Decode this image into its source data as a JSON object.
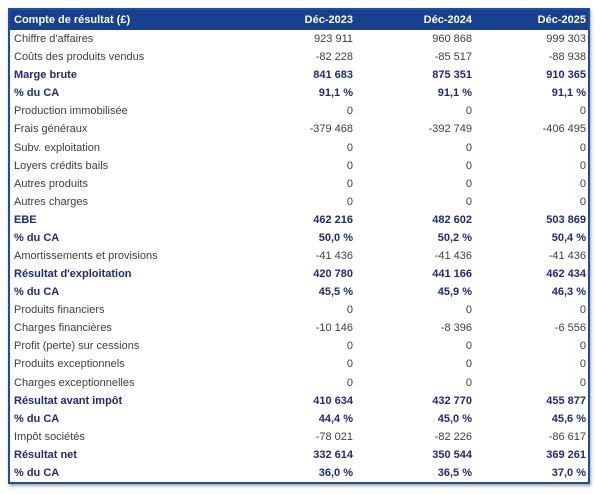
{
  "table": {
    "title": "Compte de résultat (£)",
    "columns": [
      "Déc-2023",
      "Déc-2024",
      "Déc-2025"
    ],
    "rows": [
      {
        "label": "Chiffre d'affaires",
        "values": [
          "923 911",
          "960 868",
          "999 303"
        ],
        "bold": false
      },
      {
        "label": "Coûts des produits vendus",
        "values": [
          "-82 228",
          "-85 517",
          "-88 938"
        ],
        "bold": false
      },
      {
        "label": "Marge brute",
        "values": [
          "841 683",
          "875 351",
          "910 365"
        ],
        "bold": true
      },
      {
        "label": "% du CA",
        "values": [
          "91,1 %",
          "91,1 %",
          "91,1 %"
        ],
        "bold": true
      },
      {
        "label": "Production immobilisée",
        "values": [
          "0",
          "0",
          "0"
        ],
        "bold": false
      },
      {
        "label": "Frais généraux",
        "values": [
          "-379 468",
          "-392 749",
          "-406 495"
        ],
        "bold": false
      },
      {
        "label": "Subv. exploitation",
        "values": [
          "0",
          "0",
          "0"
        ],
        "bold": false
      },
      {
        "label": "Loyers crédits bails",
        "values": [
          "0",
          "0",
          "0"
        ],
        "bold": false
      },
      {
        "label": "Autres produits",
        "values": [
          "0",
          "0",
          "0"
        ],
        "bold": false
      },
      {
        "label": "Autres charges",
        "values": [
          "0",
          "0",
          "0"
        ],
        "bold": false
      },
      {
        "label": "EBE",
        "values": [
          "462 216",
          "482 602",
          "503 869"
        ],
        "bold": true
      },
      {
        "label": "% du CA",
        "values": [
          "50,0 %",
          "50,2 %",
          "50,4 %"
        ],
        "bold": true
      },
      {
        "label": "Amortissements et provisions",
        "values": [
          "-41 436",
          "-41 436",
          "-41 436"
        ],
        "bold": false
      },
      {
        "label": "Résultat d'exploitation",
        "values": [
          "420 780",
          "441 166",
          "462 434"
        ],
        "bold": true
      },
      {
        "label": "% du CA",
        "values": [
          "45,5 %",
          "45,9 %",
          "46,3 %"
        ],
        "bold": true
      },
      {
        "label": "Produits financiers",
        "values": [
          "0",
          "0",
          "0"
        ],
        "bold": false
      },
      {
        "label": "Charges financières",
        "values": [
          "-10 146",
          "-8 396",
          "-6 556"
        ],
        "bold": false
      },
      {
        "label": "Profit (perte) sur cessions",
        "values": [
          "0",
          "0",
          "0"
        ],
        "bold": false
      },
      {
        "label": "Produits exceptionnels",
        "values": [
          "0",
          "0",
          "0"
        ],
        "bold": false
      },
      {
        "label": "Charges exceptionnelles",
        "values": [
          "0",
          "0",
          "0"
        ],
        "bold": false
      },
      {
        "label": "Résultat avant impôt",
        "values": [
          "410 634",
          "432 770",
          "455 877"
        ],
        "bold": true
      },
      {
        "label": "% du CA",
        "values": [
          "44,4 %",
          "45,0 %",
          "45,6 %"
        ],
        "bold": true
      },
      {
        "label": "Impôt sociétés",
        "values": [
          "-78 021",
          "-82 226",
          "-86 617"
        ],
        "bold": false
      },
      {
        "label": "Résultat net",
        "values": [
          "332 614",
          "350 544",
          "369 261"
        ],
        "bold": true
      },
      {
        "label": "% du CA",
        "values": [
          "36,0 %",
          "36,5 %",
          "37,0 %"
        ],
        "bold": true
      }
    ],
    "colors": {
      "header_bg": "#17418F",
      "border": "#1E4CA1",
      "bold_text": "#1F2A78",
      "text": "#3D3D3D"
    }
  }
}
